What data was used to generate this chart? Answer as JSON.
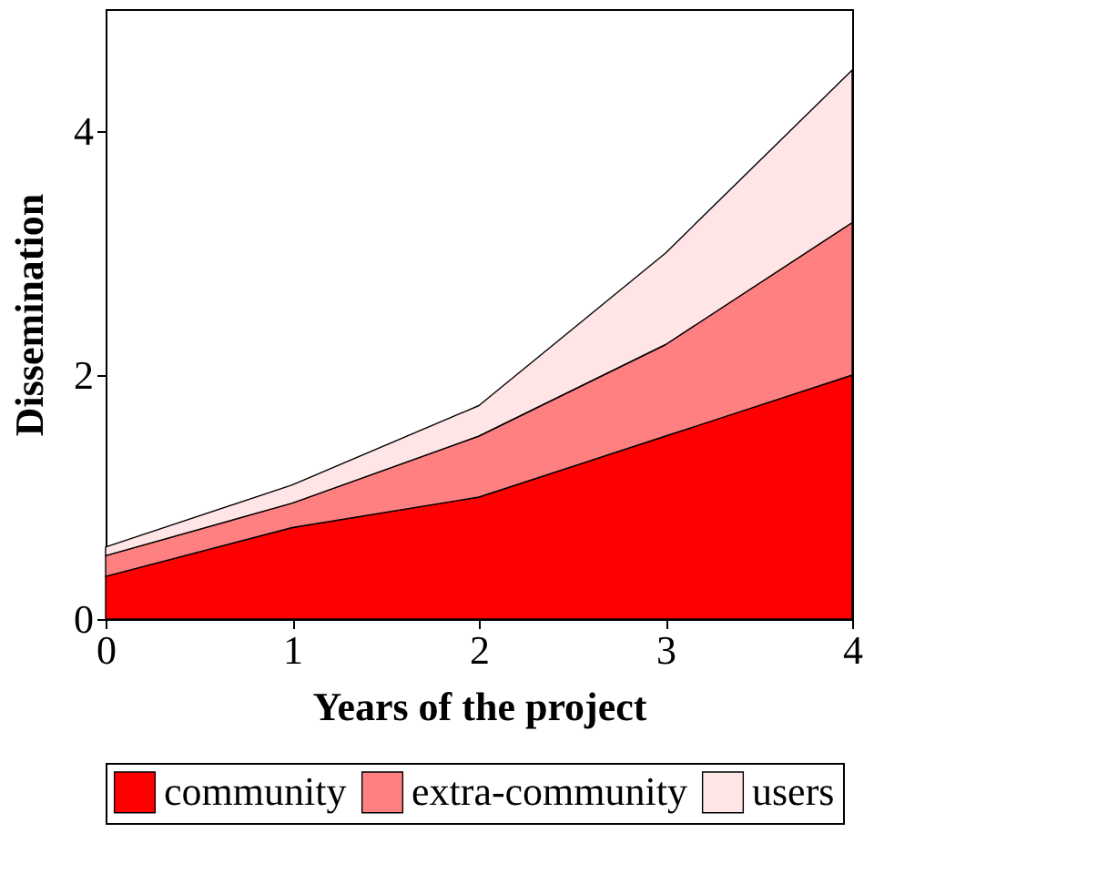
{
  "chart_data": {
    "type": "area",
    "stacked": true,
    "xlabel": "Years of the project",
    "ylabel": "Dissemination",
    "x": [
      0,
      1,
      2,
      3,
      4
    ],
    "series": [
      {
        "name": "community",
        "color": "#ff0000",
        "values": [
          0.35,
          0.75,
          1.0,
          1.5,
          2.0
        ]
      },
      {
        "name": "extra-community",
        "color": "#ff8080",
        "values": [
          0.17,
          0.2,
          0.5,
          0.75,
          1.25
        ]
      },
      {
        "name": "users",
        "color": "#ffe5e5",
        "values": [
          0.07,
          0.15,
          0.25,
          0.75,
          1.25
        ]
      }
    ],
    "xlim": [
      0,
      4
    ],
    "xticks": [
      0,
      1,
      2,
      3,
      4
    ],
    "ylim": [
      0,
      5
    ],
    "yticks": [
      0,
      2,
      4
    ],
    "grid": false,
    "legend": "bottom"
  }
}
